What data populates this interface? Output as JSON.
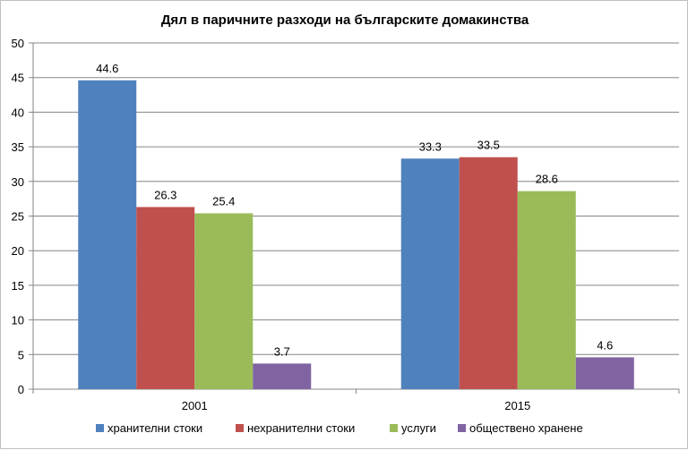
{
  "chart_data": {
    "type": "bar",
    "title": "Дял в паричните разходи на българските домакинства",
    "categories": [
      "2001",
      "2015"
    ],
    "series": [
      {
        "name": "хранителни стоки",
        "color": "#4F81BD",
        "values": [
          44.6,
          33.3
        ]
      },
      {
        "name": "нехранителни стоки",
        "color": "#C0504D",
        "values": [
          26.3,
          33.5
        ]
      },
      {
        "name": "услуги",
        "color": "#9BBB59",
        "values": [
          25.4,
          28.6
        ]
      },
      {
        "name": "обществено хранене",
        "color": "#8064A2",
        "values": [
          3.7,
          4.6
        ]
      }
    ],
    "ylim": [
      0,
      50
    ],
    "yticks": [
      0,
      5,
      10,
      15,
      20,
      25,
      30,
      35,
      40,
      45,
      50
    ],
    "xlabel": "",
    "ylabel": "",
    "grid": true,
    "legend_position": "bottom",
    "value_labels": [
      [
        "44.6",
        "33.3"
      ],
      [
        "26.3",
        "33.5"
      ],
      [
        "25.4",
        "28.6"
      ],
      [
        "3.7",
        "4.6"
      ]
    ],
    "ytick_labels": [
      "0",
      "5",
      "10",
      "15",
      "20",
      "25",
      "30",
      "35",
      "40",
      "45",
      "50"
    ]
  }
}
